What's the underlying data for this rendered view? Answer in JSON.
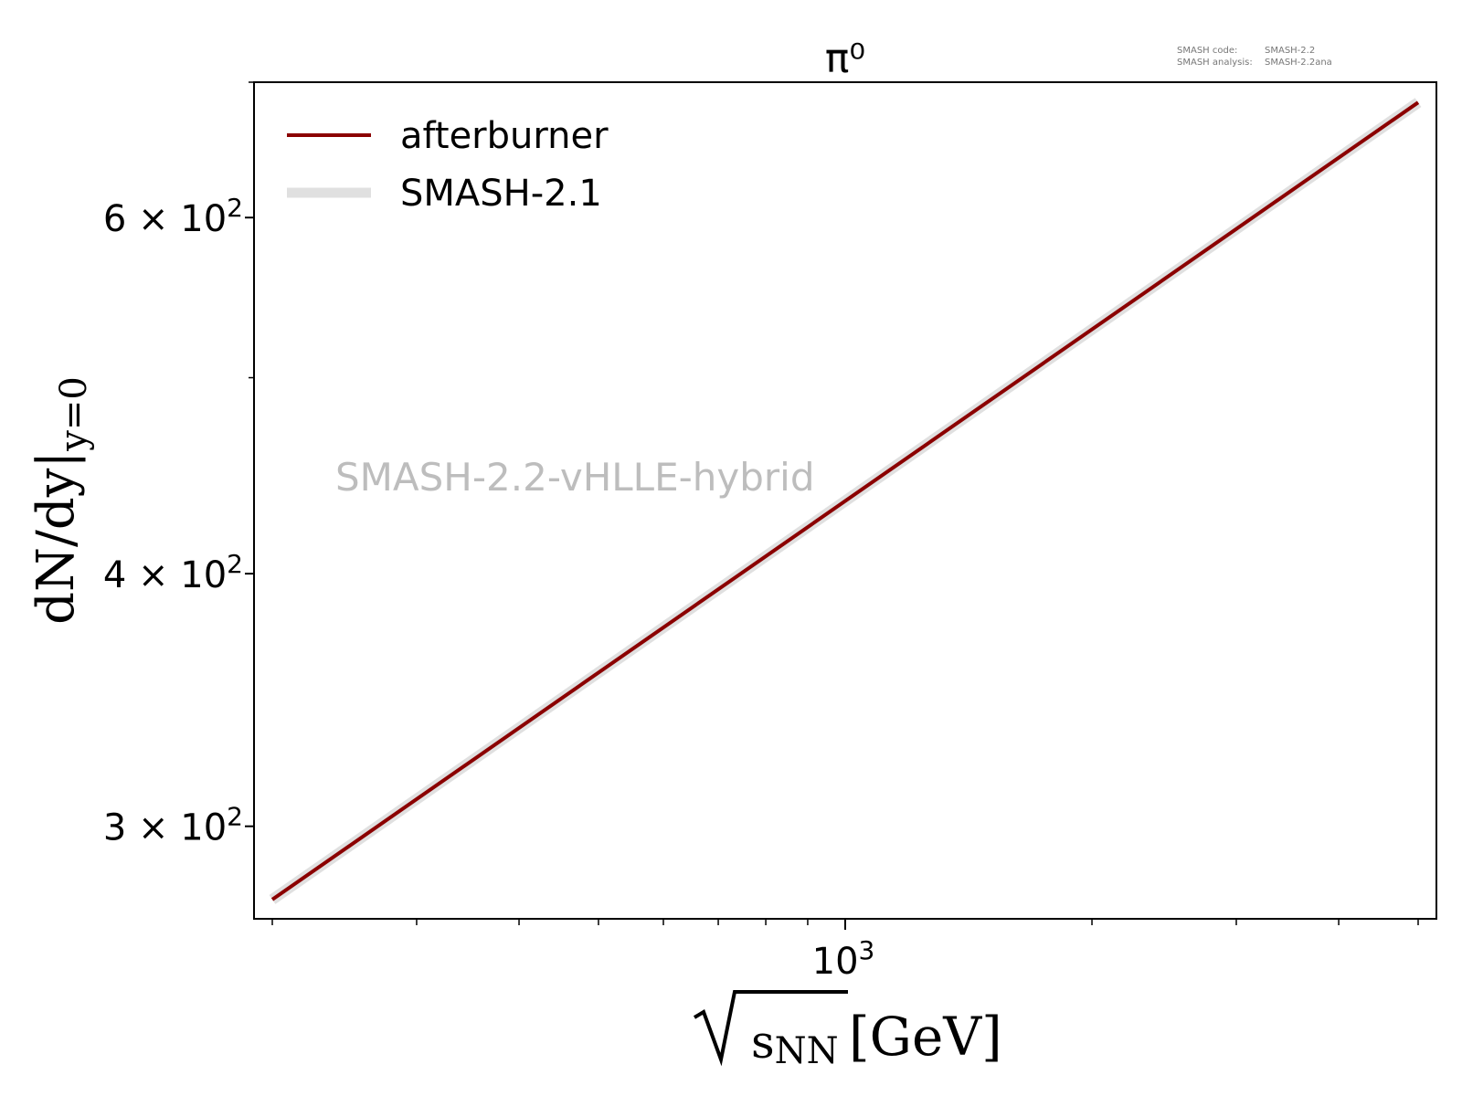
{
  "meta": {
    "code_label": "SMASH code:",
    "code_value": "SMASH-2.2",
    "analysis_label": "SMASH analysis:",
    "analysis_value": "SMASH-2.2ana"
  },
  "watermark": "SMASH-2.2-vHLLE-hybrid",
  "chart_data": {
    "type": "line",
    "title": "π⁰",
    "xlabel": "√sNN [GeV]",
    "xlabel_parts": {
      "radicand": "sNN",
      "unit": "[GeV]"
    },
    "ylabel": "dN/dy|y=0",
    "ylabel_parts": {
      "main": "dN/dy|",
      "subscript": "y=0"
    },
    "xscale": "log",
    "yscale": "log",
    "xlim": [
      200,
      5000
    ],
    "ylim": [
      270,
      700
    ],
    "x_ticks": [
      {
        "value": 1000,
        "base": "10",
        "exp": "3"
      }
    ],
    "x_minor_ticks": [
      200,
      300,
      400,
      500,
      600,
      700,
      800,
      900,
      2000,
      3000,
      4000,
      5000
    ],
    "y_ticks": [
      {
        "value": 300,
        "mantissa": "3",
        "base": "10",
        "exp": "2"
      },
      {
        "value": 400,
        "mantissa": "4",
        "base": "10",
        "exp": "2"
      },
      {
        "value": 600,
        "mantissa": "6",
        "base": "10",
        "exp": "2"
      }
    ],
    "y_minor_ticks": [
      500,
      700
    ],
    "legend_position": "top-left",
    "grid": false,
    "series": [
      {
        "name": "SMASH-2.1",
        "color": "#e0e0e0",
        "width": 12,
        "x": [
          200,
          5000
        ],
        "y": [
          276,
          684
        ]
      },
      {
        "name": "afterburner",
        "color": "#8b0000",
        "width": 4,
        "x": [
          200,
          5000
        ],
        "y": [
          276,
          684
        ]
      }
    ]
  },
  "colors": {
    "watermark": "#bdbdbd",
    "meta_text": "#777777",
    "axis": "#000000"
  }
}
